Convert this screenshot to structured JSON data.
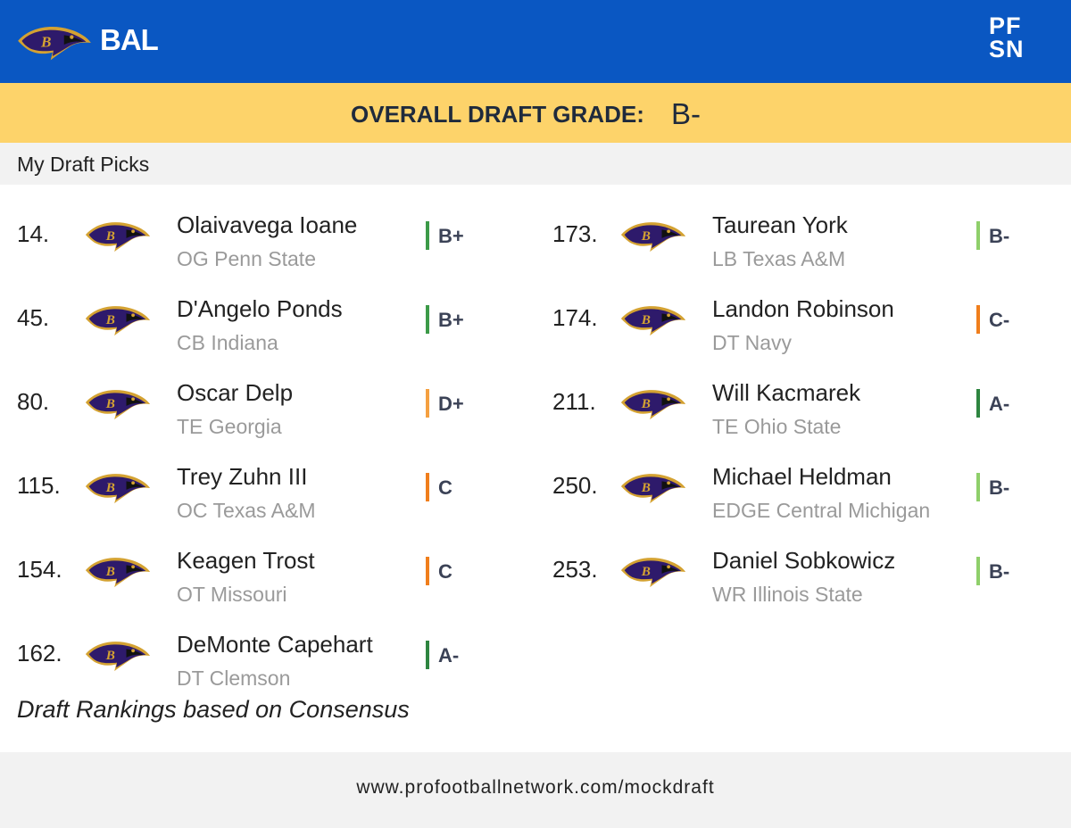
{
  "header": {
    "team": "BAL",
    "brand": [
      "PF",
      "SN"
    ]
  },
  "banner": {
    "label": "OVERALL DRAFT GRADE:",
    "grade": "B-"
  },
  "section_title": "My Draft Picks",
  "picks": [
    {
      "pick": "14.",
      "name": "Olaivavega Ioane",
      "detail": "OG Penn State",
      "grade": "B+",
      "grade_color": "#3c9a48"
    },
    {
      "pick": "45.",
      "name": "D'Angelo Ponds",
      "detail": "CB Indiana",
      "grade": "B+",
      "grade_color": "#3c9a48"
    },
    {
      "pick": "80.",
      "name": "Oscar Delp",
      "detail": "TE Georgia",
      "grade": "D+",
      "grade_color": "#f5a040"
    },
    {
      "pick": "115.",
      "name": "Trey Zuhn III",
      "detail": "OC Texas A&M",
      "grade": "C",
      "grade_color": "#f07e1c"
    },
    {
      "pick": "154.",
      "name": "Keagen Trost",
      "detail": "OT Missouri",
      "grade": "C",
      "grade_color": "#f07e1c"
    },
    {
      "pick": "162.",
      "name": "DeMonte Capehart",
      "detail": "DT Clemson",
      "grade": "A-",
      "grade_color": "#2e8540"
    },
    {
      "pick": "173.",
      "name": "Taurean York",
      "detail": "LB Texas A&M",
      "grade": "B-",
      "grade_color": "#8fcf6a"
    },
    {
      "pick": "174.",
      "name": "Landon Robinson",
      "detail": "DT Navy",
      "grade": "C-",
      "grade_color": "#f07e1c"
    },
    {
      "pick": "211.",
      "name": "Will Kacmarek",
      "detail": "TE Ohio State",
      "grade": "A-",
      "grade_color": "#2e8540"
    },
    {
      "pick": "250.",
      "name": "Michael Heldman",
      "detail": "EDGE Central Michigan",
      "grade": "B-",
      "grade_color": "#8fcf6a"
    },
    {
      "pick": "253.",
      "name": "Daniel Sobkowicz",
      "detail": "WR Illinois State",
      "grade": "B-",
      "grade_color": "#8fcf6a"
    }
  ],
  "note": "Draft Rankings based on Consensus",
  "footer": "www.profootballnetwork.com/mockdraft"
}
